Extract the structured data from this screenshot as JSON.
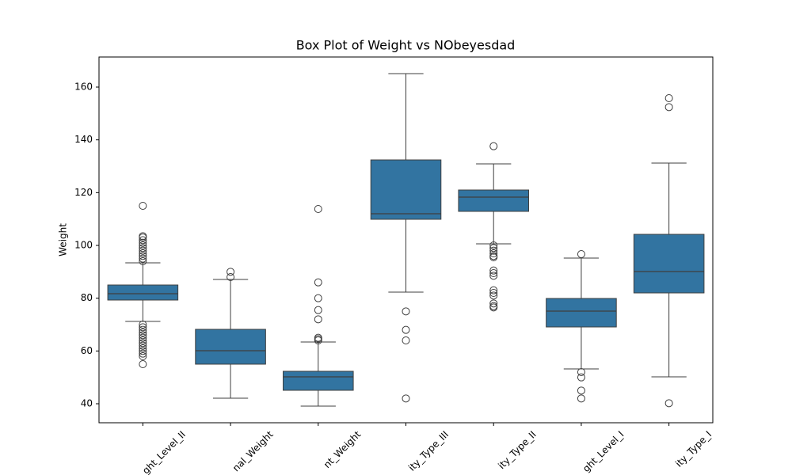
{
  "chart_data": {
    "type": "box",
    "title": "Box Plot of Weight vs NObeyesdad",
    "y_label": "Weight",
    "categories": [
      "ght_Level_II",
      "nal_Weight",
      "nt_Weight",
      "ity_Type_III",
      "ity_Type_II",
      "ght_Level_I",
      "ity_Type_I"
    ],
    "color": "#3274a1",
    "boxes": [
      {
        "q1": 79.3,
        "median": 81.7,
        "q3": 85.0,
        "whisker_low": 71.2,
        "whisker_high": 93.4,
        "outliers": [
          94,
          95,
          96,
          97,
          98,
          99,
          100,
          101,
          102,
          103,
          103.5,
          115,
          70,
          69,
          68,
          67,
          66,
          65,
          64,
          63,
          62,
          61,
          60,
          59,
          58,
          55
        ]
      },
      {
        "q1": 55.0,
        "median": 60.1,
        "q3": 68.2,
        "whisker_low": 42.1,
        "whisker_high": 87.1,
        "outliers": [
          88,
          90
        ]
      },
      {
        "q1": 45.1,
        "median": 50.2,
        "q3": 52.3,
        "whisker_low": 39.1,
        "whisker_high": 63.4,
        "outliers": [
          64,
          64.5,
          65,
          72,
          75.5,
          80,
          86,
          113.8
        ]
      },
      {
        "q1": 109.9,
        "median": 112.0,
        "q3": 132.4,
        "whisker_low": 82.3,
        "whisker_high": 165.1,
        "outliers": [
          75,
          68,
          64,
          42
        ]
      },
      {
        "q1": 112.9,
        "median": 118.3,
        "q3": 121.0,
        "whisker_low": 100.6,
        "whisker_high": 130.9,
        "outliers": [
          137.6,
          100,
          99,
          98,
          97,
          96,
          95.5,
          90.5,
          89.5,
          88.5,
          83,
          82,
          81,
          78,
          77,
          76.5
        ]
      },
      {
        "q1": 69.1,
        "median": 75.1,
        "q3": 79.9,
        "whisker_low": 53.2,
        "whisker_high": 95.2,
        "outliers": [
          96.7,
          52,
          50,
          45,
          42
        ]
      },
      {
        "q1": 82.0,
        "median": 90.1,
        "q3": 104.2,
        "whisker_low": 50.2,
        "whisker_high": 131.2,
        "outliers": [
          155.8,
          152.4,
          40.2
        ]
      }
    ],
    "ylim": [
      32.8,
      171.4
    ],
    "yticks": [
      40,
      60,
      80,
      100,
      120,
      140,
      160
    ]
  }
}
